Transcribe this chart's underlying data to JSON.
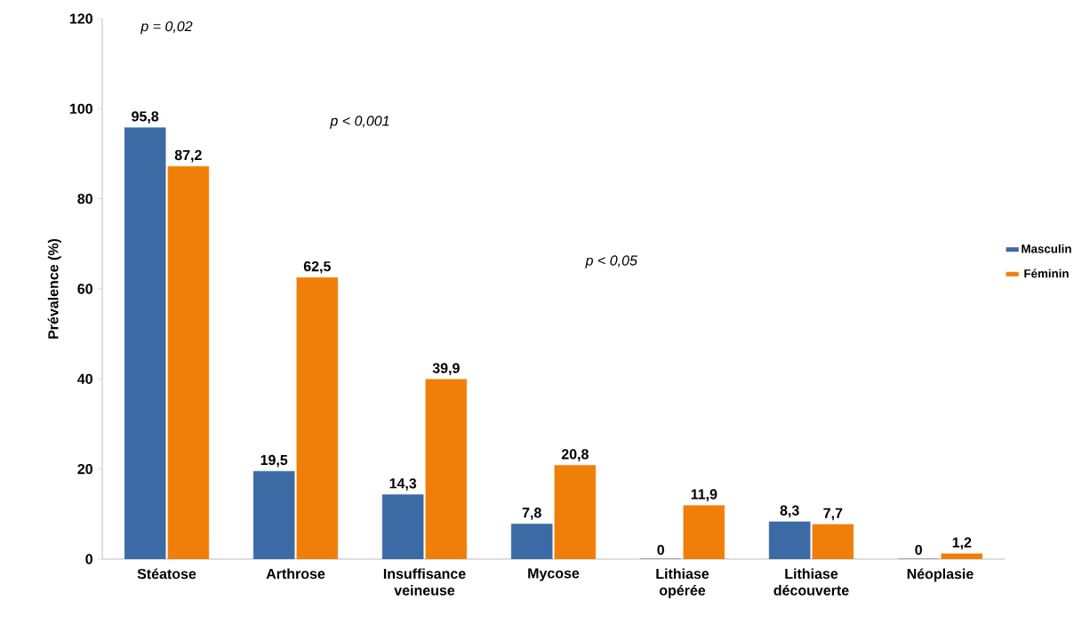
{
  "chart_data": {
    "type": "bar",
    "ylabel": "Prévalence (%)",
    "categories": [
      "Stéatose",
      "Arthrose",
      "Insuffisance veineuse",
      "Mycose",
      "Lithiase opérée",
      "Lithiase découverte",
      "Néoplasie"
    ],
    "series": [
      {
        "name": "Masculin",
        "color": "#3c6aa4",
        "values": [
          95.8,
          19.5,
          14.3,
          7.8,
          0,
          8.3,
          0
        ],
        "value_labels": [
          "95,8",
          "19,5",
          "14,3",
          "7,8",
          "0",
          "8,3",
          "0"
        ]
      },
      {
        "name": "Féminin",
        "color": "#f07f0a",
        "values": [
          87.2,
          62.5,
          39.9,
          20.8,
          11.9,
          7.7,
          1.2
        ],
        "value_labels": [
          "87,2",
          "62,5",
          "39,9",
          "20,8",
          "11,9",
          "7,7",
          "1,2"
        ]
      }
    ],
    "ylim": [
      0,
      120
    ],
    "yticks": [
      0,
      20,
      40,
      60,
      80,
      100,
      120
    ],
    "legend": "right",
    "annotations": [
      "p = 0,02",
      "p < 0,001",
      "p < 0,05"
    ]
  }
}
